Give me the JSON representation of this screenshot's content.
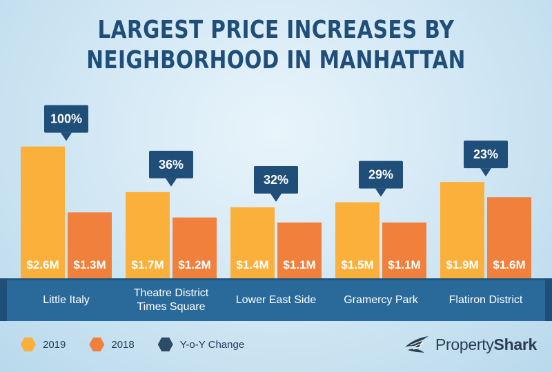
{
  "title": {
    "line1": "LARGEST PRICE INCREASES BY",
    "line2": "NEIGHBORHOOD IN MANHATTAN"
  },
  "colors": {
    "y2019": "#fbb03b",
    "y2018": "#f0803c",
    "change": "#1f4e79",
    "band": "#2a6a9a"
  },
  "chart_data": {
    "type": "bar",
    "categories": [
      "Little Italy",
      "Theatre District\nTimes Square",
      "Lower East Side",
      "Gramercy Park",
      "Flatiron District"
    ],
    "series": [
      {
        "name": "2019",
        "values": [
          2.6,
          1.7,
          1.4,
          1.5,
          1.9
        ],
        "labels": [
          "$2.6M",
          "$1.7M",
          "$1.4M",
          "$1.5M",
          "$1.9M"
        ]
      },
      {
        "name": "2018",
        "values": [
          1.3,
          1.2,
          1.1,
          1.1,
          1.6
        ],
        "labels": [
          "$1.3M",
          "$1.2M",
          "$1.1M",
          "$1.1M",
          "$1.6M"
        ]
      }
    ],
    "yoy_change": [
      "100%",
      "36%",
      "32%",
      "29%",
      "23%"
    ],
    "ylim": [
      0,
      2.8
    ],
    "grid": false,
    "legend_position": "bottom-left"
  },
  "legend": [
    {
      "label": "2019",
      "shape": "hexagon",
      "color": "#fbb03b"
    },
    {
      "label": "2018",
      "shape": "hexagon",
      "color": "#f0803c"
    },
    {
      "label": "Y-o-Y Change",
      "shape": "hexagon",
      "color": "#2d4a66"
    }
  ],
  "logo": {
    "text_light": "Property",
    "text_bold": "Shark",
    "icon": "shark-fin-icon"
  }
}
